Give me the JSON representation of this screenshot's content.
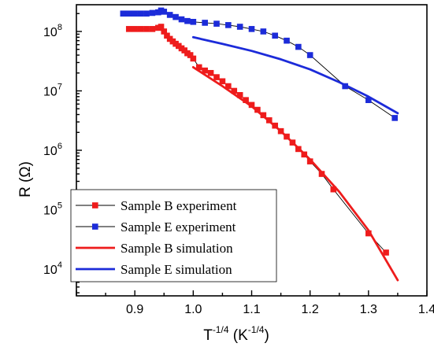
{
  "chart_data": {
    "type": "scatter",
    "title": "",
    "xlabel": {
      "base": "T",
      "exp": "-1/4",
      "unit_open": " (K",
      "unit_exp": "-1/4",
      "unit_close": ")"
    },
    "ylabel": "R (Ω)",
    "xlim": [
      0.8,
      1.4
    ],
    "ylim_log10": [
      3.55,
      8.45
    ],
    "y_scale": "log",
    "x_ticks": [
      0.9,
      1.0,
      1.1,
      1.2,
      1.3,
      1.4
    ],
    "x_tick_labels": [
      "0.9",
      "1.0",
      "1.1",
      "1.2",
      "1.3",
      "1.4"
    ],
    "y_ticks_log10": [
      4,
      5,
      6,
      7,
      8
    ],
    "y_tick_labels": [
      {
        "base": "10",
        "exp": "4"
      },
      {
        "base": "10",
        "exp": "5"
      },
      {
        "base": "10",
        "exp": "6"
      },
      {
        "base": "10",
        "exp": "7"
      },
      {
        "base": "10",
        "exp": "8"
      }
    ],
    "grid": false,
    "legend_position": "bottom-left",
    "series": [
      {
        "name": "Sample B experiment",
        "kind": "line+markers",
        "color": "#ee1c1c",
        "x": [
          0.89,
          0.9,
          0.91,
          0.92,
          0.93,
          0.94,
          0.945,
          0.95,
          0.955,
          0.96,
          0.965,
          0.97,
          0.975,
          0.98,
          0.985,
          0.99,
          0.995,
          1.0,
          1.01,
          1.02,
          1.03,
          1.04,
          1.05,
          1.06,
          1.07,
          1.08,
          1.09,
          1.1,
          1.11,
          1.12,
          1.13,
          1.14,
          1.15,
          1.16,
          1.17,
          1.18,
          1.19,
          1.2,
          1.22,
          1.24,
          1.3,
          1.33
        ],
        "y": [
          110000000,
          110000000,
          110000000,
          110000000,
          110000000,
          115000000,
          120000000,
          100000000,
          85000000,
          75000000,
          68000000,
          62000000,
          57000000,
          52000000,
          48000000,
          43000000,
          40000000,
          35000000,
          25000000,
          22000000,
          20000000,
          17000000,
          14500000,
          12000000,
          10000000,
          8500000,
          7000000,
          5800000,
          4800000,
          3900000,
          3200000,
          2600000,
          2100000,
          1700000,
          1350000,
          1050000,
          850000,
          650000,
          400000,
          220000,
          40000,
          19000
        ]
      },
      {
        "name": "Sample E experiment",
        "kind": "line+markers",
        "color": "#1c2bd9",
        "x": [
          0.88,
          0.89,
          0.9,
          0.91,
          0.92,
          0.93,
          0.94,
          0.945,
          0.95,
          0.96,
          0.97,
          0.98,
          0.99,
          1.0,
          1.02,
          1.04,
          1.06,
          1.08,
          1.1,
          1.12,
          1.14,
          1.16,
          1.18,
          1.2,
          1.26,
          1.3,
          1.345
        ],
        "y": [
          200000000,
          200000000,
          200000000,
          200000000,
          200000000,
          205000000,
          210000000,
          225000000,
          215000000,
          190000000,
          175000000,
          160000000,
          150000000,
          145000000,
          140000000,
          135000000,
          128000000,
          120000000,
          110000000,
          100000000,
          85000000,
          70000000,
          55000000,
          40000000,
          12000000,
          7000000,
          3500000
        ]
      },
      {
        "name": "Sample B simulation",
        "kind": "line",
        "color": "#ee1c1c",
        "x": [
          1.0,
          1.05,
          1.1,
          1.15,
          1.2,
          1.25,
          1.3,
          1.35
        ],
        "y": [
          25000000,
          12000000,
          5500000,
          2100000,
          700000,
          200000,
          45000,
          6500
        ]
      },
      {
        "name": "Sample E simulation",
        "kind": "line",
        "color": "#1c2bd9",
        "x": [
          1.0,
          1.05,
          1.1,
          1.15,
          1.2,
          1.25,
          1.3,
          1.35
        ],
        "y": [
          80000000,
          62000000,
          47000000,
          34000000,
          23000000,
          14000000,
          8000000,
          4200000
        ]
      }
    ]
  }
}
